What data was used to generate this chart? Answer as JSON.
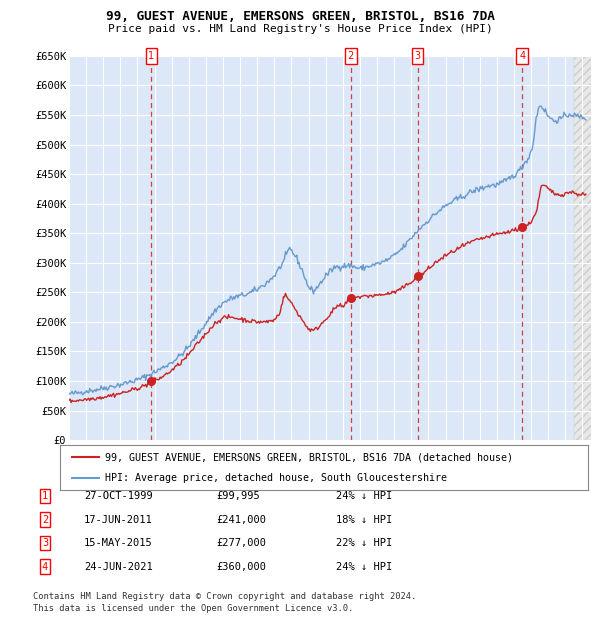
{
  "title1": "99, GUEST AVENUE, EMERSONS GREEN, BRISTOL, BS16 7DA",
  "title2": "Price paid vs. HM Land Registry's House Price Index (HPI)",
  "ylim": [
    0,
    650000
  ],
  "yticks": [
    0,
    50000,
    100000,
    150000,
    200000,
    250000,
    300000,
    350000,
    400000,
    450000,
    500000,
    550000,
    600000,
    650000
  ],
  "ytick_labels": [
    "£0",
    "£50K",
    "£100K",
    "£150K",
    "£200K",
    "£250K",
    "£300K",
    "£350K",
    "£400K",
    "£450K",
    "£500K",
    "£550K",
    "£600K",
    "£650K"
  ],
  "xlim_start": 1995.0,
  "xlim_end": 2025.5,
  "plot_bg_color": "#dce8f8",
  "hpi_color": "#6699cc",
  "price_color": "#cc2222",
  "dashed_line_color": "#cc4444",
  "transactions": [
    {
      "num": 1,
      "date_label": "27-OCT-1999",
      "price_label": "£99,995",
      "pct_label": "24% ↓ HPI",
      "year": 1999.82,
      "price": 99995
    },
    {
      "num": 2,
      "date_label": "17-JUN-2011",
      "price_label": "£241,000",
      "pct_label": "18% ↓ HPI",
      "year": 2011.46,
      "price": 241000
    },
    {
      "num": 3,
      "date_label": "15-MAY-2015",
      "price_label": "£277,000",
      "pct_label": "22% ↓ HPI",
      "year": 2015.37,
      "price": 277000
    },
    {
      "num": 4,
      "date_label": "24-JUN-2021",
      "price_label": "£360,000",
      "pct_label": "24% ↓ HPI",
      "year": 2021.48,
      "price": 360000
    }
  ],
  "legend_line1": "99, GUEST AVENUE, EMERSONS GREEN, BRISTOL, BS16 7DA (detached house)",
  "legend_line2": "HPI: Average price, detached house, South Gloucestershire",
  "footnote1": "Contains HM Land Registry data © Crown copyright and database right 2024.",
  "footnote2": "This data is licensed under the Open Government Licence v3.0.",
  "hatch_start": 2024.5,
  "hatch_end": 2026.0
}
